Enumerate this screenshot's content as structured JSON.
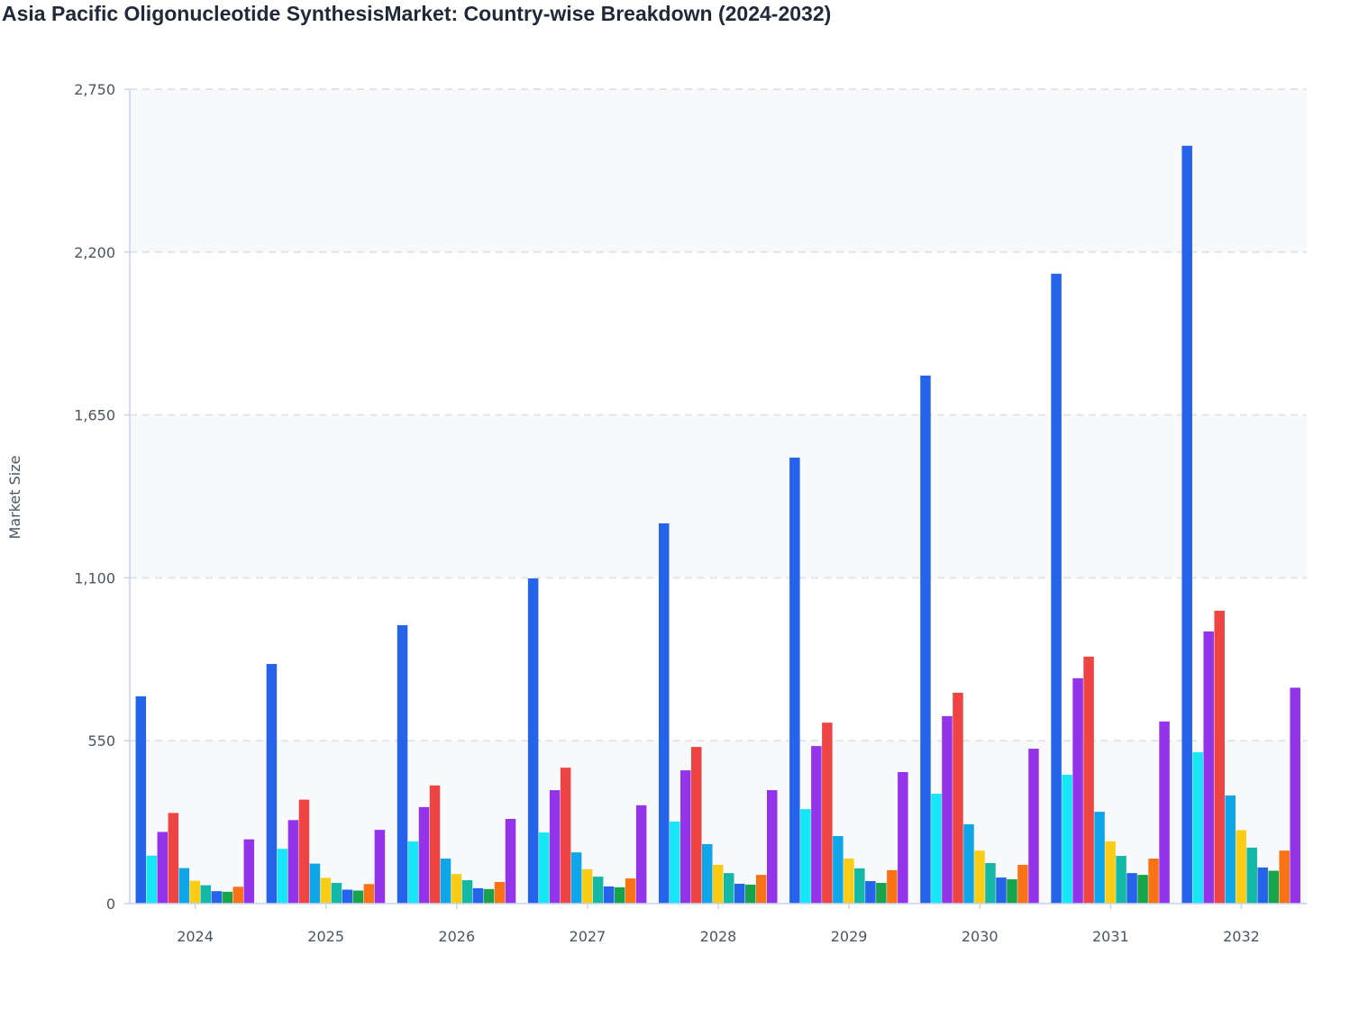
{
  "chart_data": {
    "type": "bar",
    "title": "Asia Pacific Oligonucleotide SynthesisMarket: Country-wise Breakdown (2024-2032)",
    "xlabel": "",
    "ylabel": "Market Size",
    "ylim": [
      0,
      2750
    ],
    "yticks": [
      "0",
      "550",
      "1,100",
      "1,650",
      "2,200",
      "2,750"
    ],
    "ytick_values": [
      0,
      550,
      1100,
      1650,
      2200,
      2750
    ],
    "grid": true,
    "legend": "none",
    "categories": [
      "2024",
      "2025",
      "2026",
      "2027",
      "2028",
      "2029",
      "2030",
      "2031",
      "2032"
    ],
    "series": [
      {
        "color": "#2563eb",
        "values": [
          700,
          809,
          940,
          1098,
          1284,
          1506,
          1783,
          2127,
          2559
        ]
      },
      {
        "color": "#17e6f7",
        "values": [
          162,
          185,
          210,
          240,
          277,
          319,
          371,
          435,
          511
        ]
      },
      {
        "color": "#9333ea",
        "values": [
          242,
          282,
          326,
          383,
          450,
          532,
          633,
          761,
          919
        ]
      },
      {
        "color": "#ef4444",
        "values": [
          306,
          351,
          399,
          459,
          529,
          611,
          712,
          834,
          989
        ]
      },
      {
        "color": "#0ea5e9",
        "values": [
          120,
          135,
          152,
          173,
          201,
          228,
          268,
          310,
          365
        ]
      },
      {
        "color": "#facc15",
        "values": [
          77,
          87,
          100,
          116,
          131,
          152,
          179,
          210,
          248
        ]
      },
      {
        "color": "#14b8a6",
        "values": [
          62,
          70,
          79,
          91,
          103,
          119,
          137,
          161,
          189
        ]
      },
      {
        "color": "#2563eb",
        "values": [
          42,
          47,
          52,
          58,
          67,
          76,
          88,
          103,
          122
        ]
      },
      {
        "color": "#16a34a",
        "values": [
          40,
          44,
          49,
          55,
          64,
          70,
          82,
          97,
          111
        ]
      },
      {
        "color": "#f97316",
        "values": [
          57,
          66,
          73,
          85,
          97,
          113,
          131,
          152,
          179
        ]
      },
      {
        "color": "#9333ea",
        "values": [
          217,
          249,
          286,
          332,
          383,
          444,
          523,
          615,
          729
        ]
      }
    ]
  }
}
